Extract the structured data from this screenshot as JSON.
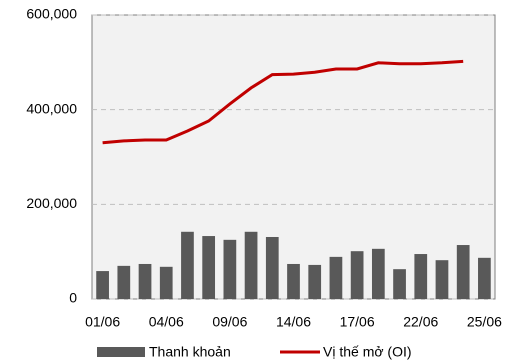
{
  "chart_data": {
    "type": "bar_line",
    "categories": [
      "01/06",
      null,
      null,
      "04/06",
      null,
      null,
      "09/06",
      null,
      null,
      "14/06",
      null,
      null,
      "17/06",
      null,
      null,
      "22/06",
      null,
      null,
      "25/06"
    ],
    "series": [
      {
        "name": "Thanh khoản",
        "type": "bar",
        "color": "#595959",
        "values": [
          59000,
          70000,
          74000,
          68000,
          142000,
          133000,
          125000,
          142000,
          131000,
          74000,
          72000,
          89000,
          101000,
          106000,
          63000,
          95000,
          82000,
          114000,
          87000
        ]
      },
      {
        "name": "Vị thế mở (OI)",
        "type": "line",
        "color": "#c00000",
        "values": [
          330000,
          334000,
          336000,
          336000,
          355000,
          376000,
          412000,
          446000,
          474000,
          475000,
          479000,
          486000,
          486000,
          499000,
          497000,
          497000,
          499000,
          502000,
          null
        ]
      }
    ],
    "ylim": [
      0,
      600000
    ],
    "yticks": [
      0,
      {
        "value": 200000,
        "label": "200,000"
      },
      {
        "value": 400000,
        "label": "400,000"
      },
      {
        "value": 600000,
        "label": "600,000"
      }
    ],
    "grid": true,
    "legend": "bottom"
  }
}
